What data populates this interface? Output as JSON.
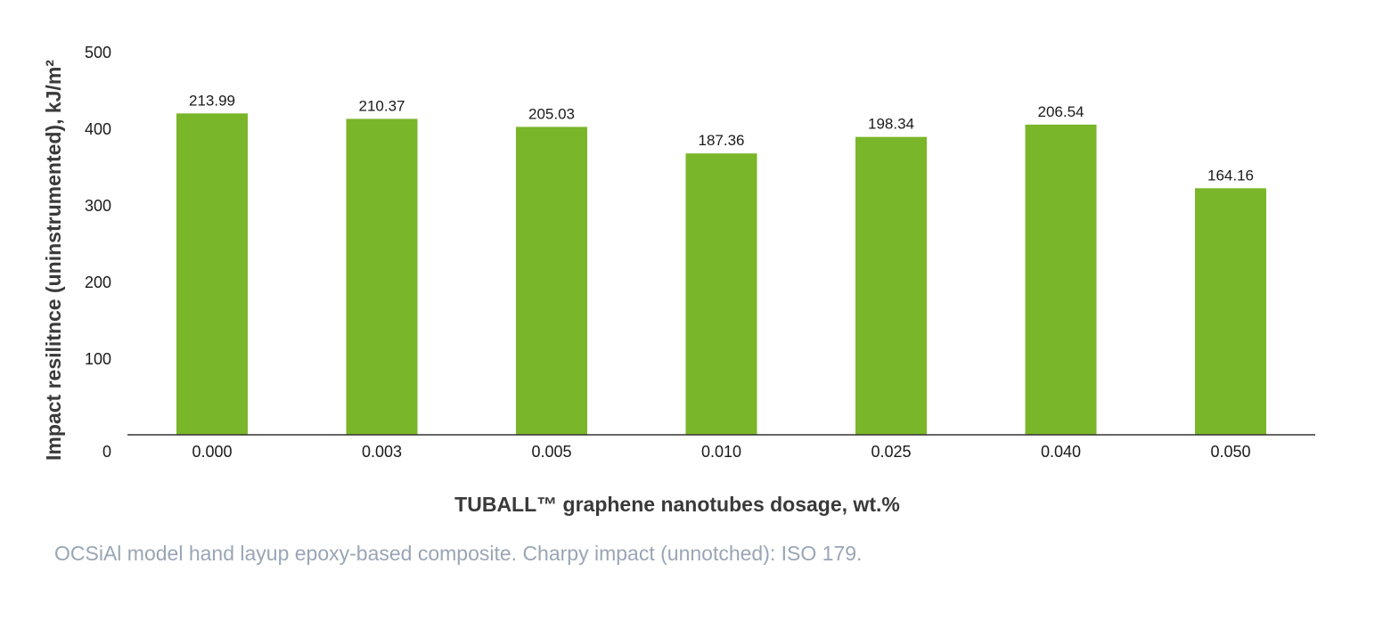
{
  "chart_data": {
    "type": "bar",
    "categories": [
      "0.000",
      "0.003",
      "0.005",
      "0.010",
      "0.025",
      "0.040",
      "0.050"
    ],
    "values": [
      213.99,
      210.37,
      205.03,
      187.36,
      198.34,
      206.54,
      164.16
    ],
    "value_labels": [
      "213.99",
      "210.37",
      "205.03",
      "187.36",
      "198.34",
      "206.54",
      "164.16"
    ],
    "title": "",
    "xlabel": "TUBALL™ graphene nanotubes dosage, wt.%",
    "ylabel": "Impact resilitnce (uninstrumented), kJ/m²",
    "ylim": [
      0,
      500
    ],
    "yticks": [
      0,
      100,
      200,
      300,
      400,
      500
    ],
    "grid": false,
    "legend": "none",
    "bar_color": "#7ab629",
    "axis_color": "#333333"
  },
  "caption": "OCSiAl model hand layup epoxy-based composite. Charpy impact (unnotched): ISO 179."
}
